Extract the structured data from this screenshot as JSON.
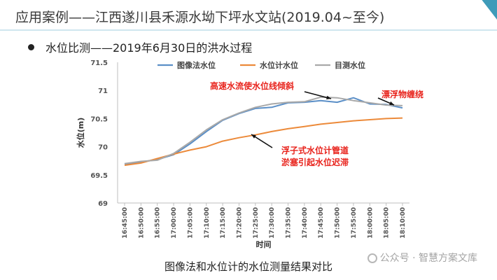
{
  "slide": {
    "title": "应用案例——江西遂川县禾源水坳下坪水文站(2019.04~至今)",
    "bullet": "水位比测——2019年6月30日的洪水过程",
    "caption": "图像法和水位计的水位测量结果对比",
    "watermark": "公众号 · 智慧方案文库"
  },
  "chart_data": {
    "type": "line",
    "title": "",
    "xlabel": "时间",
    "ylabel": "水位(m)",
    "ylim": [
      69,
      71.5
    ],
    "yticks": [
      "69",
      "69.5",
      "70",
      "70.5",
      "71",
      "71.5"
    ],
    "x": [
      "16:45:00",
      "16:50:00",
      "16:55:00",
      "17:00:00",
      "17:05:00",
      "17:10:00",
      "17:15:00",
      "17:20:00",
      "17:25:00",
      "17:30:00",
      "17:35:00",
      "17:40:00",
      "17:45:00",
      "17:50:00",
      "17:55:00",
      "18:00:00",
      "18:05:00",
      "18:10:00"
    ],
    "legend_position": "top",
    "series": [
      {
        "name": "图像法水位",
        "color": "#5b8fc7",
        "values": [
          69.69,
          69.73,
          69.77,
          69.86,
          70.05,
          70.27,
          70.47,
          70.59,
          70.68,
          70.7,
          70.78,
          70.79,
          70.82,
          70.79,
          70.87,
          70.76,
          70.75,
          70.69
        ]
      },
      {
        "name": "水位计水位",
        "color": "#ec8a3a",
        "values": [
          69.67,
          69.71,
          69.79,
          69.87,
          69.94,
          70.0,
          70.1,
          70.16,
          70.21,
          70.27,
          70.32,
          70.36,
          70.4,
          70.43,
          70.46,
          70.48,
          70.5,
          70.51
        ]
      },
      {
        "name": "目测水位",
        "color": "#a9a9a9",
        "values": [
          69.7,
          69.74,
          69.76,
          69.88,
          70.08,
          70.3,
          70.48,
          70.6,
          70.7,
          70.76,
          70.79,
          70.8,
          70.88,
          70.87,
          70.82,
          70.78,
          70.74,
          70.73
        ]
      }
    ],
    "annotations": [
      {
        "text": "高速水流使水位线倾斜",
        "color": "#e8221b"
      },
      {
        "text": "漂浮物缠绕",
        "color": "#e8221b"
      },
      {
        "text": "浮子式水位计管道",
        "color": "#e8221b"
      },
      {
        "text": "淤塞引起水位迟滞",
        "color": "#e8221b"
      }
    ],
    "grid": false
  }
}
